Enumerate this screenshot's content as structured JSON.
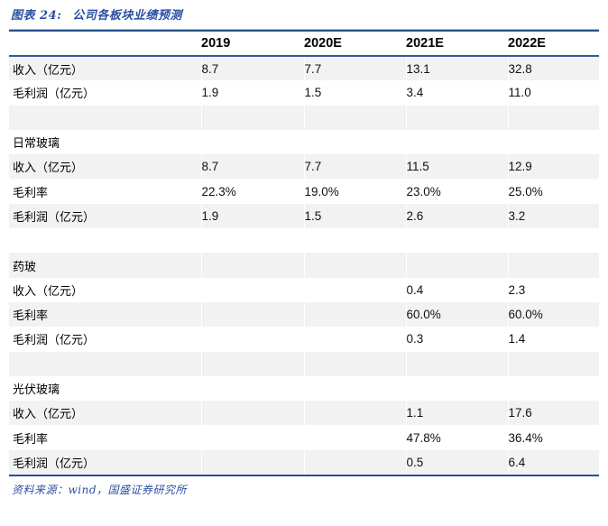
{
  "title": {
    "prefix": "图表 24:",
    "text": "公司各板块业绩预测"
  },
  "table": {
    "columns": [
      "",
      "2019",
      "2020E",
      "2021E",
      "2022E"
    ],
    "rows": [
      {
        "type": "data",
        "label": "收入（亿元）",
        "values": [
          "8.7",
          "7.7",
          "13.1",
          "32.8"
        ]
      },
      {
        "type": "data",
        "label": "毛利润（亿元）",
        "values": [
          "1.9",
          "1.5",
          "3.4",
          "11.0"
        ]
      },
      {
        "type": "spacer",
        "label": "",
        "values": [
          "",
          "",
          "",
          ""
        ]
      },
      {
        "type": "section",
        "label": "日常玻璃",
        "values": [
          "",
          "",
          "",
          ""
        ]
      },
      {
        "type": "data",
        "label": "收入（亿元）",
        "values": [
          "8.7",
          "7.7",
          "11.5",
          "12.9"
        ]
      },
      {
        "type": "data",
        "label": "毛利率",
        "values": [
          "22.3%",
          "19.0%",
          "23.0%",
          "25.0%"
        ]
      },
      {
        "type": "data",
        "label": "毛利润（亿元）",
        "values": [
          "1.9",
          "1.5",
          "2.6",
          "3.2"
        ]
      },
      {
        "type": "spacer",
        "label": "",
        "values": [
          "",
          "",
          "",
          ""
        ]
      },
      {
        "type": "section",
        "label": "药玻",
        "values": [
          "",
          "",
          "",
          ""
        ]
      },
      {
        "type": "data",
        "label": "收入（亿元）",
        "values": [
          "",
          "",
          "0.4",
          "2.3"
        ]
      },
      {
        "type": "data",
        "label": "毛利率",
        "values": [
          "",
          "",
          "60.0%",
          "60.0%"
        ]
      },
      {
        "type": "data",
        "label": "毛利润（亿元）",
        "values": [
          "",
          "",
          "0.3",
          "1.4"
        ]
      },
      {
        "type": "spacer",
        "label": "",
        "values": [
          "",
          "",
          "",
          ""
        ]
      },
      {
        "type": "section",
        "label": "光伏玻璃",
        "values": [
          "",
          "",
          "",
          ""
        ]
      },
      {
        "type": "data",
        "label": "收入（亿元）",
        "values": [
          "",
          "",
          "1.1",
          "17.6"
        ]
      },
      {
        "type": "data",
        "label": "毛利率",
        "values": [
          "",
          "",
          "47.8%",
          "36.4%"
        ]
      },
      {
        "type": "data",
        "label": "毛利润（亿元）",
        "values": [
          "",
          "",
          "0.5",
          "6.4"
        ]
      }
    ]
  },
  "footer": {
    "source": "资料来源：wind，国盛证券研究所"
  },
  "colors": {
    "accent_blue": "#2B4EA2",
    "rule_navy": "#24538C",
    "header_rule_blue": "#2F5C96",
    "stripe_gray": "#F2F2F2"
  }
}
